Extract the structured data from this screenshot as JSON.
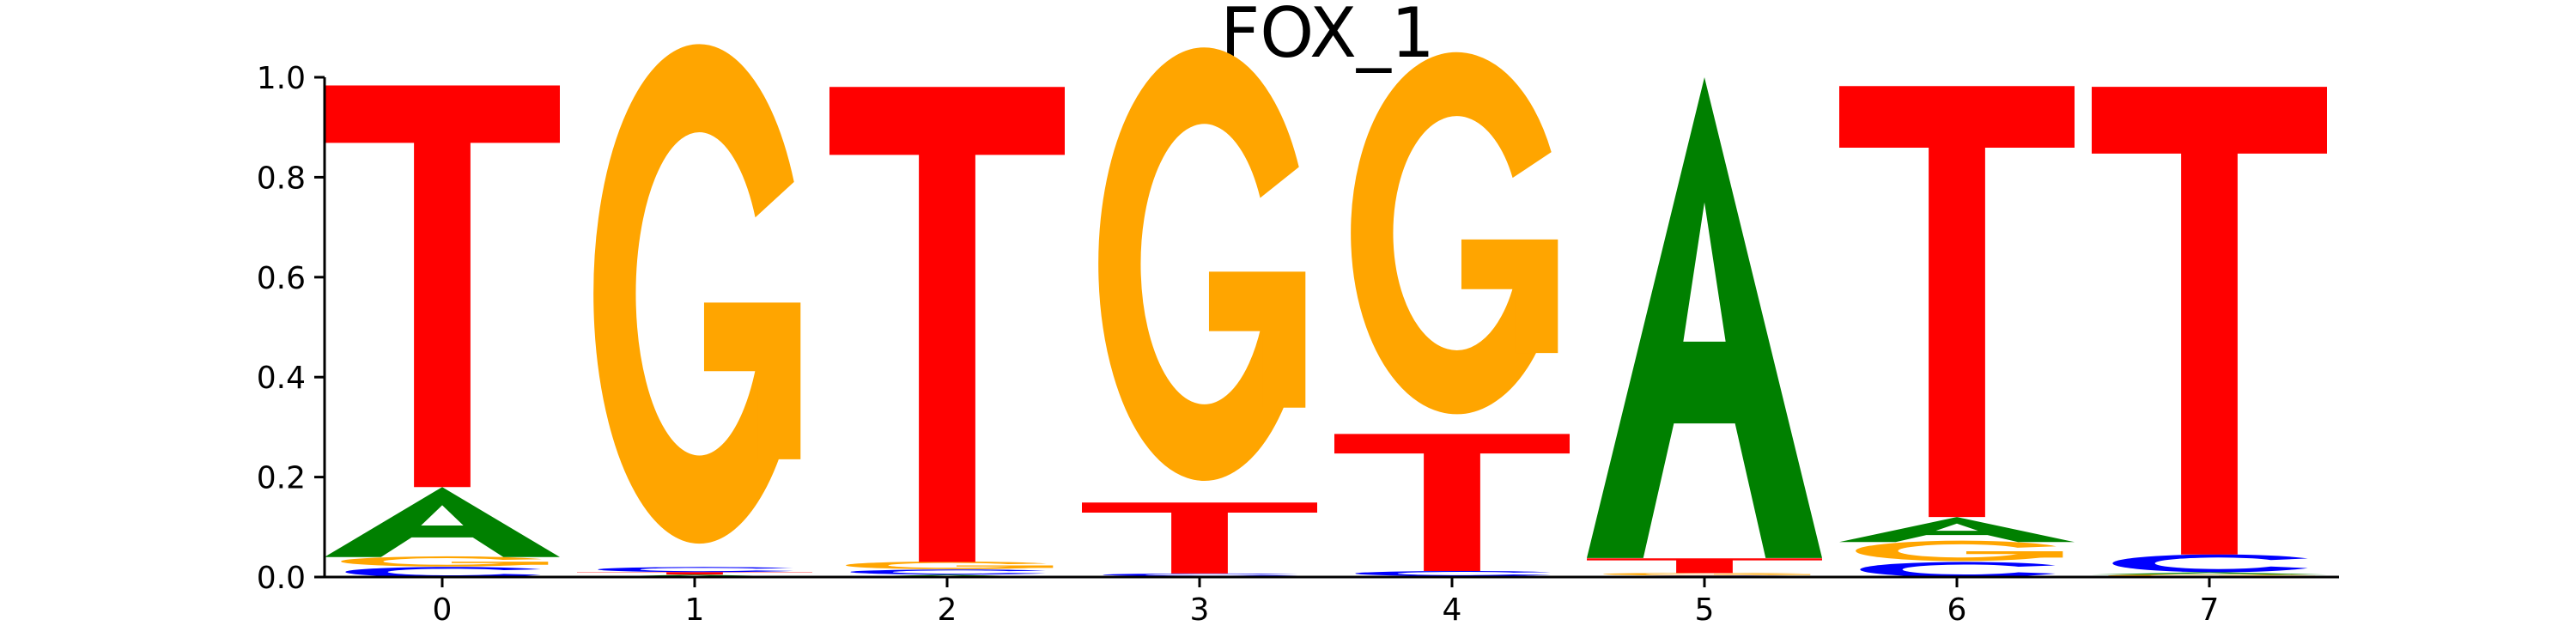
{
  "chart_data": {
    "type": "sequence-logo",
    "title": "FOX_1",
    "xlabel": "",
    "ylabel": "",
    "ylim": [
      0,
      1.0
    ],
    "yticks": [
      "0.0",
      "0.2",
      "0.4",
      "0.6",
      "0.8",
      "1.0"
    ],
    "yticks_values": [
      0,
      0.2,
      0.4,
      0.6,
      0.8,
      1.0
    ],
    "positions": [
      "0",
      "1",
      "2",
      "3",
      "4",
      "5",
      "6",
      "7"
    ],
    "colors": {
      "A": "#008000",
      "C": "#0000ff",
      "G": "#ffa500",
      "T": "#ff0000"
    },
    "columns": [
      {
        "position": "0",
        "stack": [
          {
            "base": "C",
            "value": 0.02
          },
          {
            "base": "G",
            "value": 0.02
          },
          {
            "base": "A",
            "value": 0.14
          },
          {
            "base": "T",
            "value": 0.82
          }
        ]
      },
      {
        "position": "1",
        "stack": [
          {
            "base": "A",
            "value": 0.005
          },
          {
            "base": "T",
            "value": 0.005
          },
          {
            "base": "C",
            "value": 0.01
          },
          {
            "base": "G",
            "value": 0.98
          }
        ]
      },
      {
        "position": "2",
        "stack": [
          {
            "base": "A",
            "value": 0.005
          },
          {
            "base": "C",
            "value": 0.01
          },
          {
            "base": "G",
            "value": 0.015
          },
          {
            "base": "T",
            "value": 0.97
          }
        ]
      },
      {
        "position": "3",
        "stack": [
          {
            "base": "A",
            "value": 0.002
          },
          {
            "base": "C",
            "value": 0.005
          },
          {
            "base": "T",
            "value": 0.145
          },
          {
            "base": "G",
            "value": 0.85
          }
        ]
      },
      {
        "position": "4",
        "stack": [
          {
            "base": "A",
            "value": 0.002
          },
          {
            "base": "C",
            "value": 0.01
          },
          {
            "base": "T",
            "value": 0.28
          },
          {
            "base": "G",
            "value": 0.71
          }
        ]
      },
      {
        "position": "5",
        "stack": [
          {
            "base": "C",
            "value": 0.003
          },
          {
            "base": "G",
            "value": 0.005
          },
          {
            "base": "T",
            "value": 0.03
          },
          {
            "base": "A",
            "value": 0.962
          }
        ]
      },
      {
        "position": "6",
        "stack": [
          {
            "base": "C",
            "value": 0.03
          },
          {
            "base": "G",
            "value": 0.04
          },
          {
            "base": "A",
            "value": 0.05
          },
          {
            "base": "T",
            "value": 0.88
          }
        ]
      },
      {
        "position": "7",
        "stack": [
          {
            "base": "G",
            "value": 0.005
          },
          {
            "base": "A",
            "value": 0.005
          },
          {
            "base": "C",
            "value": 0.035
          },
          {
            "base": "T",
            "value": 0.955
          }
        ]
      }
    ]
  }
}
